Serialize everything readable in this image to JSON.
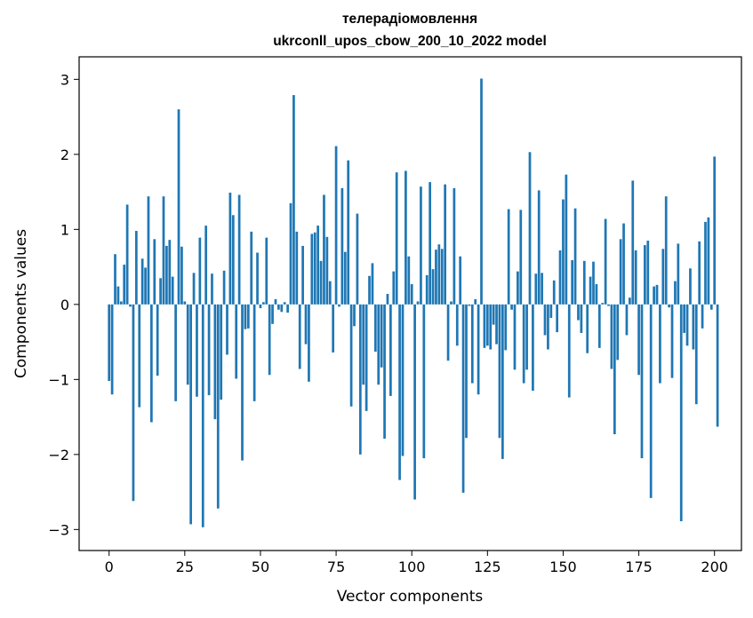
{
  "chart_data": {
    "type": "bar",
    "title": "телерадіомовлення",
    "subtitle": "ukrconll_upos_cbow_200_10_2022 model",
    "xlabel": "Vector components",
    "ylabel": "Components values",
    "xlim": [
      -9.9,
      208.9
    ],
    "ylim": [
      -3.28,
      3.3
    ],
    "xticks": [
      0,
      25,
      50,
      75,
      100,
      125,
      150,
      175,
      200
    ],
    "yticks": [
      -3,
      -2,
      -1,
      0,
      1,
      2,
      3
    ],
    "color": "#1f77b4",
    "grid": false,
    "legend": "none",
    "values": [
      -1.02,
      -1.2,
      0.67,
      0.24,
      0.04,
      0.53,
      1.33,
      -0.03,
      -2.62,
      0.98,
      -1.37,
      0.61,
      0.49,
      1.44,
      -1.57,
      0.87,
      -0.95,
      0.35,
      1.44,
      0.78,
      0.86,
      0.37,
      -1.29,
      2.6,
      0.77,
      0.04,
      -1.07,
      -2.93,
      0.42,
      -1.23,
      0.89,
      -2.97,
      1.05,
      -1.21,
      0.41,
      -1.53,
      -2.72,
      -1.27,
      0.45,
      -0.67,
      1.49,
      1.19,
      -0.99,
      1.46,
      -2.08,
      -0.33,
      -0.32,
      0.97,
      -1.29,
      0.69,
      -0.05,
      0.03,
      0.89,
      -0.94,
      -0.26,
      0.07,
      -0.07,
      -0.1,
      0.03,
      -0.11,
      1.35,
      2.79,
      0.97,
      -0.86,
      0.78,
      -0.53,
      -1.03,
      0.94,
      0.96,
      1.05,
      0.58,
      1.46,
      0.9,
      0.31,
      -0.64,
      2.11,
      -0.03,
      1.55,
      0.7,
      1.92,
      -1.36,
      -0.29,
      1.21,
      -2.0,
      -1.07,
      -1.42,
      0.38,
      0.55,
      -0.63,
      -1.07,
      -0.84,
      -1.79,
      0.14,
      -1.22,
      0.44,
      1.76,
      -2.34,
      -2.02,
      1.78,
      0.64,
      0.27,
      -2.6,
      0.04,
      1.57,
      -2.05,
      0.39,
      1.63,
      0.47,
      0.73,
      0.8,
      0.74,
      1.6,
      -0.75,
      0.04,
      1.55,
      -0.55,
      0.64,
      -2.51,
      -1.78,
      -0.02,
      -1.05,
      0.07,
      -1.2,
      3.01,
      -0.58,
      -0.55,
      -0.6,
      -0.27,
      -0.53,
      -1.78,
      -2.06,
      -0.61,
      1.27,
      -0.07,
      -0.87,
      0.44,
      1.26,
      -1.05,
      -0.87,
      2.03,
      -1.15,
      0.41,
      1.52,
      0.42,
      -0.41,
      -0.6,
      -0.18,
      0.32,
      -0.37,
      0.72,
      1.4,
      1.73,
      -1.24,
      0.59,
      1.28,
      -0.21,
      -0.38,
      0.58,
      -0.65,
      0.37,
      0.57,
      0.27,
      -0.58,
      0.02,
      1.14,
      -0.02,
      -0.86,
      -1.73,
      -0.74,
      0.87,
      1.08,
      -0.41,
      0.09,
      1.65,
      0.72,
      -0.94,
      -2.05,
      0.79,
      0.85,
      -2.58,
      0.24,
      0.26,
      -1.05,
      0.74,
      1.44,
      -0.04,
      -0.98,
      0.31,
      0.81,
      -2.89,
      -0.38,
      -0.55,
      0.48,
      -0.6,
      -1.33,
      0.84,
      -0.32,
      1.1,
      1.16,
      -0.07,
      1.97,
      -1.63
    ]
  }
}
